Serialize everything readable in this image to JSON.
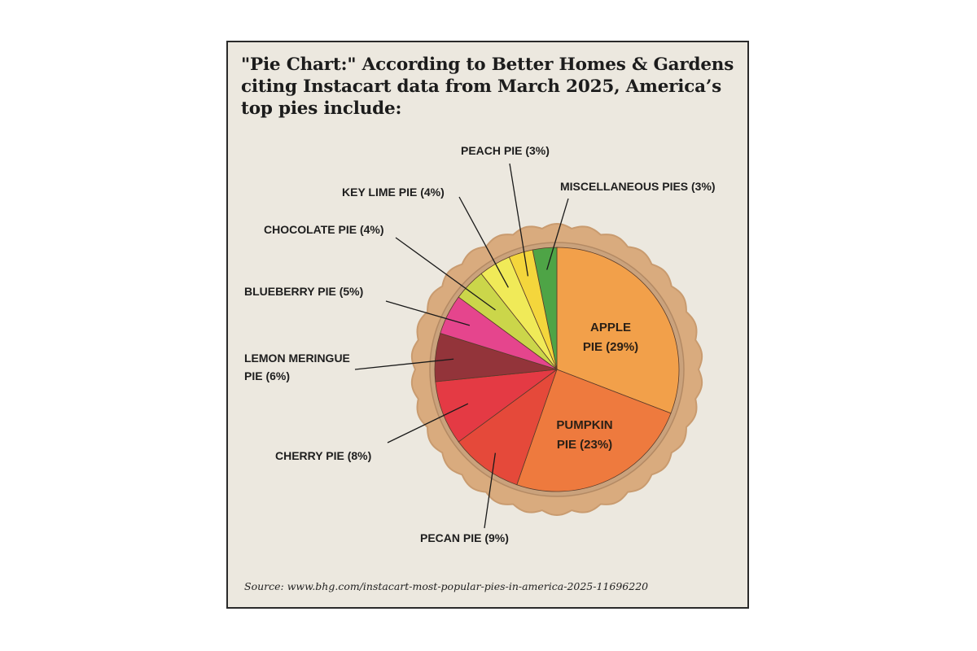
{
  "title": "\"Pie Chart:\" According to Better Homes & Gardens citing Instacart data from March 2025, America’s top pies include:",
  "source": "Source: www.bhg.com/instacart-most-popular-pies-in-america-2025-11696220",
  "colors": {
    "background": "#ece8df",
    "crust": "#d9ab7e",
    "crust_edge": "#c99b6f"
  },
  "chart_data": {
    "type": "pie",
    "title": "America’s top pies",
    "start_angle_deg": 0,
    "direction": "clockwise",
    "slices": [
      {
        "name": "APPLE PIE",
        "value": 29,
        "color": "#f2a04a",
        "label_lines": [
          "APPLE",
          "PIE (29%)"
        ],
        "label_position": "inside"
      },
      {
        "name": "PUMPKIN PIE",
        "value": 23,
        "color": "#ee7a3e",
        "label_lines": [
          "PUMPKIN",
          "PIE (23%)"
        ],
        "label_position": "inside"
      },
      {
        "name": "PECAN PIE",
        "value": 9,
        "color": "#e5493a",
        "label_lines": [
          "PECAN PIE (9%)"
        ],
        "label_position": "below"
      },
      {
        "name": "CHERRY PIE",
        "value": 8,
        "color": "#e43a44",
        "label_lines": [
          "CHERRY PIE (8%)"
        ],
        "label_position": "lower-left"
      },
      {
        "name": "LEMON MERINGUE PIE",
        "value": 6,
        "color": "#93343a",
        "label_lines": [
          "LEMON MERINGUE",
          "PIE (6%)"
        ],
        "label_position": "left"
      },
      {
        "name": "BLUEBERRY PIE",
        "value": 5,
        "color": "#e5458d",
        "label_lines": [
          "BLUEBERRY PIE (5%)"
        ],
        "label_position": "left"
      },
      {
        "name": "CHOCOLATE PIE",
        "value": 4,
        "color": "#cbd64a",
        "label_lines": [
          "CHOCOLATE PIE (4%)"
        ],
        "label_position": "upper-left"
      },
      {
        "name": "KEY LIME PIE",
        "value": 4,
        "color": "#f0ea58",
        "label_lines": [
          "KEY LIME PIE (4%)"
        ],
        "label_position": "top"
      },
      {
        "name": "PEACH PIE",
        "value": 3,
        "color": "#f4d63c",
        "label_lines": [
          "PEACH PIE (3%)"
        ],
        "label_position": "top"
      },
      {
        "name": "MISCELLANEOUS PIES",
        "value": 3,
        "color": "#4ea446",
        "label_lines": [
          "MISCELLANEOUS PIES (3%)"
        ],
        "label_position": "top-right"
      }
    ]
  }
}
